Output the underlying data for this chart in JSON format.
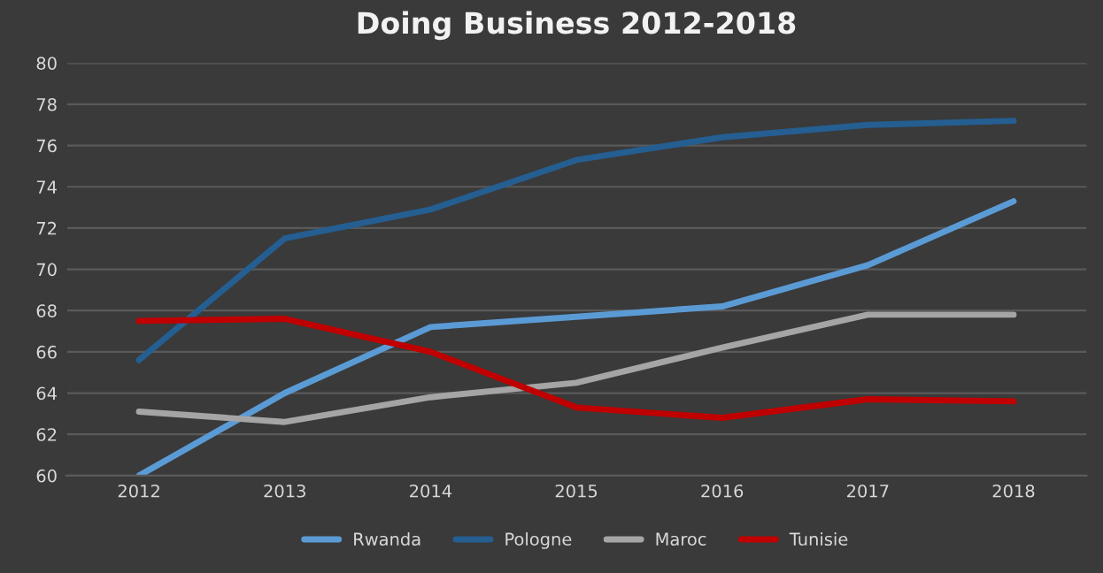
{
  "chart_data": {
    "type": "line",
    "title": "Doing Business 2012-2018",
    "categories": [
      "2012",
      "2013",
      "2014",
      "2015",
      "2016",
      "2017",
      "2018"
    ],
    "series": [
      {
        "name": "Rwanda",
        "color": "#5b9bd5",
        "values": [
          60.0,
          64.0,
          67.2,
          67.7,
          68.2,
          70.2,
          73.3
        ]
      },
      {
        "name": "Pologne",
        "color": "#255e91",
        "values": [
          65.6,
          71.5,
          72.9,
          75.3,
          76.4,
          77.0,
          77.2
        ]
      },
      {
        "name": "Maroc",
        "color": "#a5a5a5",
        "values": [
          63.1,
          62.6,
          63.8,
          64.5,
          66.2,
          67.8,
          67.8
        ]
      },
      {
        "name": "Tunisie",
        "color": "#c00000",
        "values": [
          67.5,
          67.6,
          66.0,
          63.3,
          62.8,
          63.7,
          63.6
        ]
      }
    ],
    "ylim": [
      60,
      80
    ],
    "yticks": [
      60,
      62,
      64,
      66,
      68,
      70,
      72,
      74,
      76,
      78,
      80
    ],
    "grid": "y",
    "legend": "bottom",
    "marker": "none",
    "line_style": "solid"
  }
}
